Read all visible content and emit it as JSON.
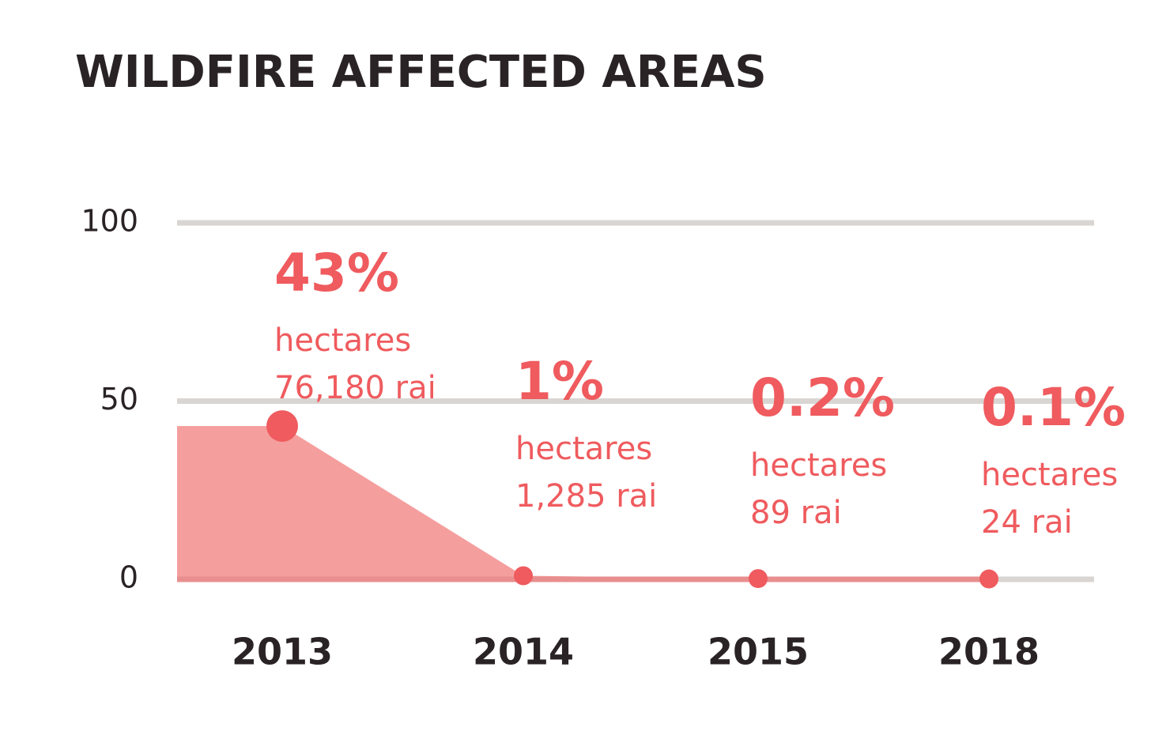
{
  "chart_data": {
    "type": "area",
    "title": "WILDFIRE AFFECTED AREAS",
    "categories": [
      "2013",
      "2014",
      "2015",
      "2018"
    ],
    "series": [
      {
        "values": [
          43,
          1,
          0.2,
          0.1
        ],
        "value_labels": [
          "43%",
          "1%",
          "0.2%",
          "0.1%"
        ],
        "notes": [
          [
            "hectares",
            "76,180 rai"
          ],
          [
            "hectares",
            "1,285 rai"
          ],
          [
            "hectares",
            "89 rai"
          ],
          [
            "hectares",
            "24 rai"
          ]
        ],
        "color": "#ef5b5e",
        "fill": "#f59e9e"
      }
    ],
    "ylim": [
      0,
      100
    ],
    "yticks": [
      0,
      50,
      100
    ],
    "grid": true
  }
}
